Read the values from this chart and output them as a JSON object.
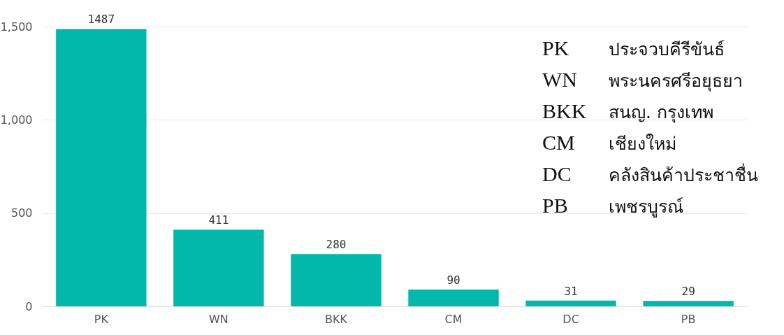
{
  "chart_data": {
    "type": "bar",
    "categories": [
      "PK",
      "WN",
      "BKK",
      "CM",
      "DC",
      "PB"
    ],
    "values": [
      1487,
      411,
      280,
      90,
      31,
      29
    ],
    "color": "#01b8aa",
    "ylim": [
      0,
      1500
    ],
    "yticks": [
      0,
      {
        "value": 500,
        "label": "500"
      },
      {
        "value": 1000,
        "label": "1,000"
      },
      {
        "value": 1500,
        "label": "1,500"
      }
    ],
    "grid": "y",
    "data_labels": true,
    "annotations": [
      "PK ประจวบคีรีขันธ์",
      "WN พระนครศรีอยุธยา",
      "BKK สนญ. กรุงเทพ",
      "CM เชียงใหม่",
      "DC คลังสินค้าประชาชื่น",
      "PB เพชรบูรณ์"
    ]
  }
}
